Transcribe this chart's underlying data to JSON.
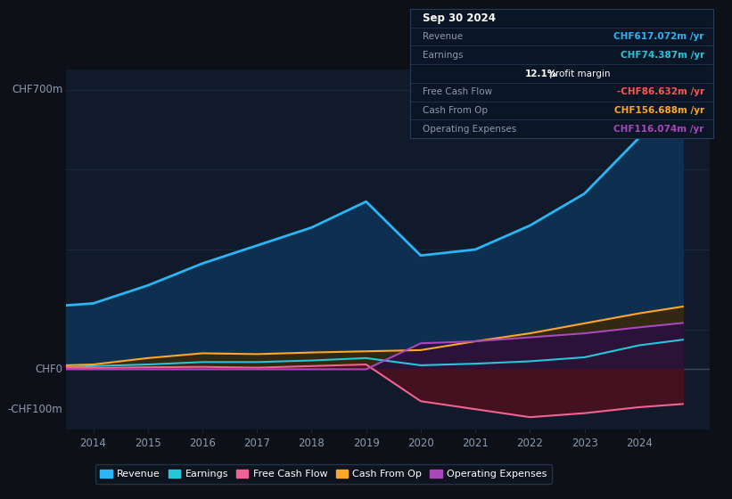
{
  "background_color": "#0d1117",
  "plot_bg_color": "#101a2a",
  "years": [
    2013.5,
    2014,
    2015,
    2016,
    2017,
    2018,
    2019,
    2020,
    2021,
    2022,
    2023,
    2024,
    2024.8
  ],
  "revenue": [
    160,
    165,
    210,
    265,
    310,
    355,
    420,
    285,
    300,
    360,
    440,
    580,
    617
  ],
  "earnings": [
    5,
    8,
    12,
    18,
    18,
    22,
    28,
    10,
    14,
    20,
    30,
    60,
    74
  ],
  "free_cash_flow": [
    3,
    3,
    5,
    6,
    4,
    8,
    12,
    -80,
    -100,
    -120,
    -110,
    -95,
    -87
  ],
  "cash_from_op": [
    10,
    12,
    28,
    40,
    38,
    42,
    45,
    48,
    70,
    90,
    115,
    140,
    157
  ],
  "op_expenses": [
    0,
    0,
    0,
    0,
    0,
    0,
    0,
    65,
    70,
    80,
    90,
    105,
    116
  ],
  "revenue_color": "#29b6f6",
  "earnings_color": "#26c6da",
  "fcf_color": "#f06292",
  "cashop_color": "#ffa726",
  "opex_color": "#ab47bc",
  "revenue_fill": "#0d3050",
  "fcf_fill": "#4a1020",
  "earnings_fill": "#0a3838",
  "cashop_fill": "#3a2808",
  "opex_fill": "#2a0f40",
  "ylim_min": -150,
  "ylim_max": 750,
  "xlim_min": 2013.5,
  "xlim_max": 2025.3,
  "grid_lines": [
    700,
    500,
    300,
    100,
    0
  ],
  "grid_color": "#1a2a3a",
  "zero_line_color": "#3a4a5a",
  "tick_color": "#6a7a8a",
  "ylabel_top": "CHF700m",
  "ylabel_zero": "CHF0",
  "ylabel_neg": "-CHF100m",
  "year_ticks": [
    2014,
    2015,
    2016,
    2017,
    2018,
    2019,
    2020,
    2021,
    2022,
    2023,
    2024
  ],
  "legend_labels": [
    "Revenue",
    "Earnings",
    "Free Cash Flow",
    "Cash From Op",
    "Operating Expenses"
  ],
  "tooltip_title": "Sep 30 2024",
  "tooltip_rows": [
    {
      "label": "Revenue",
      "value": "CHF617.072m /yr",
      "value_color": "#29b6f6"
    },
    {
      "label": "Earnings",
      "value": "CHF74.387m /yr",
      "value_color": "#26c6da"
    },
    {
      "label": "",
      "value": "12.1% profit margin",
      "value_color": "#ffffff"
    },
    {
      "label": "Free Cash Flow",
      "value": "-CHF86.632m /yr",
      "value_color": "#ff5555"
    },
    {
      "label": "Cash From Op",
      "value": "CHF156.688m /yr",
      "value_color": "#ffa726"
    },
    {
      "label": "Operating Expenses",
      "value": "CHF116.074m /yr",
      "value_color": "#ab47bc"
    }
  ],
  "tooltip_bg": "#0a1525",
  "tooltip_border": "#2a3a5a",
  "label_color": "#8a9ab0"
}
